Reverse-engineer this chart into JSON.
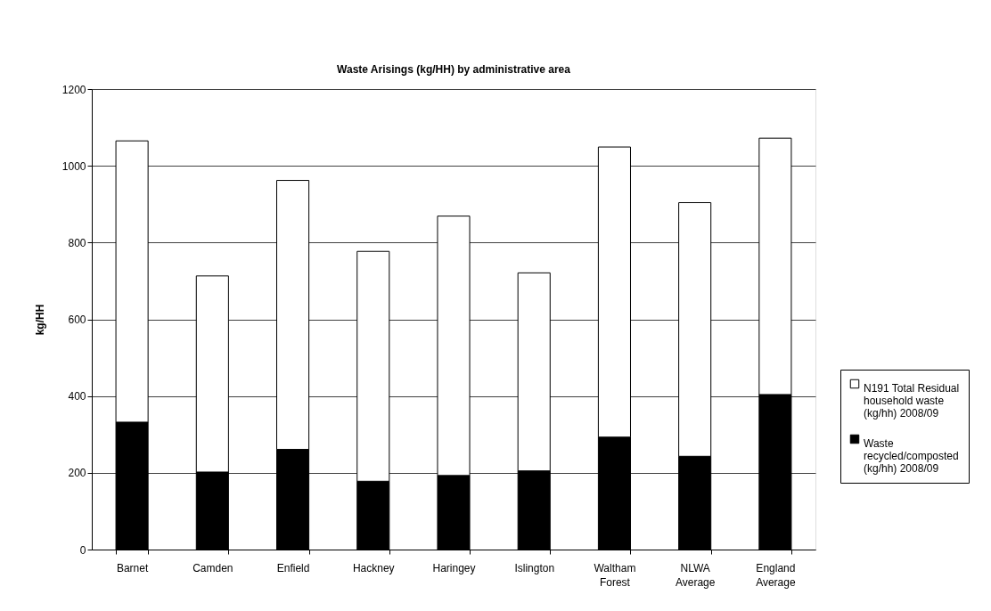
{
  "chart_data": {
    "type": "bar",
    "title": "Waste Arisings (kg/HH) by administrative area",
    "ylabel": "kg/HH",
    "categories": [
      "Barnet",
      "Camden",
      "Enfield",
      "Hackney",
      "Haringey",
      "Islington",
      "Waltham Forest",
      "NLWA Average",
      "England Average"
    ],
    "stacked": true,
    "series": [
      {
        "name": "Waste recycled/composted (kg/hh) 2008/09",
        "color": "#000000",
        "values": [
          332,
          202,
          261,
          178,
          193,
          205,
          293,
          243,
          404
        ]
      },
      {
        "name": "N191 Total Residual household waste (kg/hh) 2008/09",
        "color": "#ffffff",
        "values": [
          733,
          511,
          701,
          599,
          676,
          516,
          756,
          661,
          668
        ]
      }
    ],
    "ylim": [
      0,
      1200
    ],
    "yticks": [
      0,
      200,
      400,
      600,
      800,
      1000,
      1200
    ],
    "grid": "y",
    "legend": "right"
  }
}
